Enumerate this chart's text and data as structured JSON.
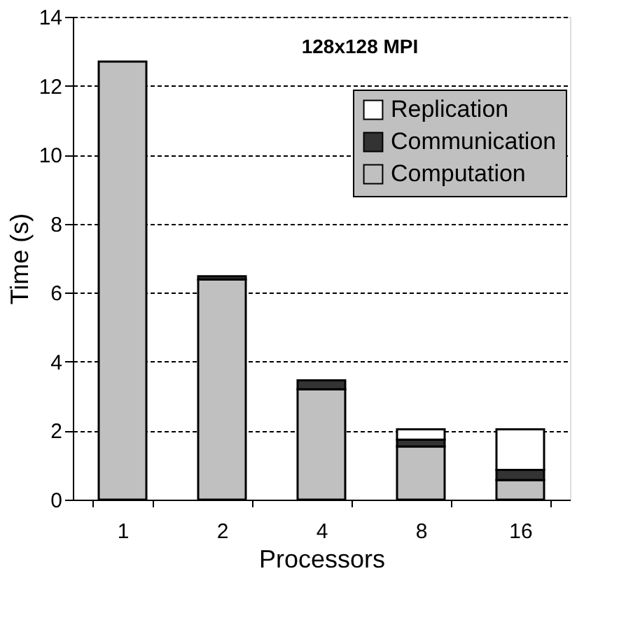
{
  "chart_data": {
    "type": "bar",
    "title": "128x128 MPI",
    "xlabel": "Processors",
    "ylabel": "Time (s)",
    "categories": [
      "1",
      "2",
      "4",
      "8",
      "16"
    ],
    "stacked": true,
    "series": [
      {
        "name": "Computation",
        "color": "#c0c0c0",
        "values": [
          12.7,
          6.38,
          3.2,
          1.54,
          0.57
        ]
      },
      {
        "name": "Communication",
        "color": "#333333",
        "values": [
          0,
          0.1,
          0.26,
          0.2,
          0.29
        ]
      },
      {
        "name": "Replication",
        "color": "#ffffff",
        "values": [
          0,
          0,
          0,
          0.3,
          1.18
        ]
      }
    ],
    "ylim": [
      0,
      14
    ],
    "yticks": [
      0,
      2,
      4,
      6,
      8,
      10,
      12,
      14
    ],
    "grid": "y",
    "legend": "top right"
  }
}
